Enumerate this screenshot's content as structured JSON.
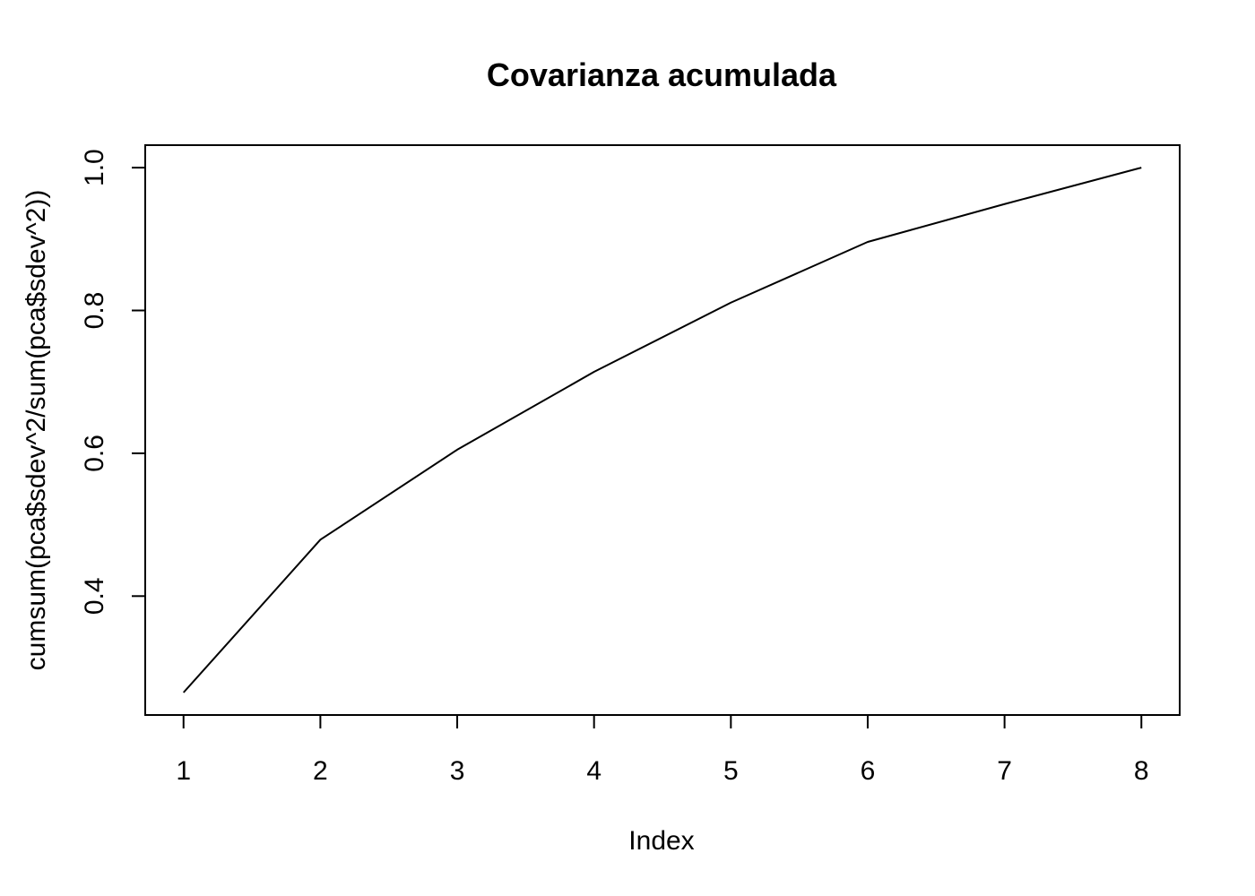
{
  "chart_data": {
    "type": "line",
    "title": "Covarianza acumulada",
    "xlabel": "Index",
    "ylabel": "cumsum(pca$sdev^2/sum(pca$sdev^2))",
    "x": [
      1,
      2,
      3,
      4,
      5,
      6,
      7,
      8
    ],
    "series": [
      {
        "values": [
          0.265,
          0.479,
          0.605,
          0.714,
          0.811,
          0.896,
          0.949,
          1.0
        ]
      }
    ],
    "x_ticks": [
      "1",
      "2",
      "3",
      "4",
      "5",
      "6",
      "7",
      "8"
    ],
    "y_ticks": [
      "0.4",
      "0.6",
      "0.8",
      "1.0"
    ],
    "xlim": [
      0.72,
      8.28
    ],
    "ylim": [
      0.2335,
      1.0315
    ],
    "grid": false,
    "colors": {
      "line": "#000000",
      "frame": "#000000",
      "background": "#ffffff"
    }
  }
}
